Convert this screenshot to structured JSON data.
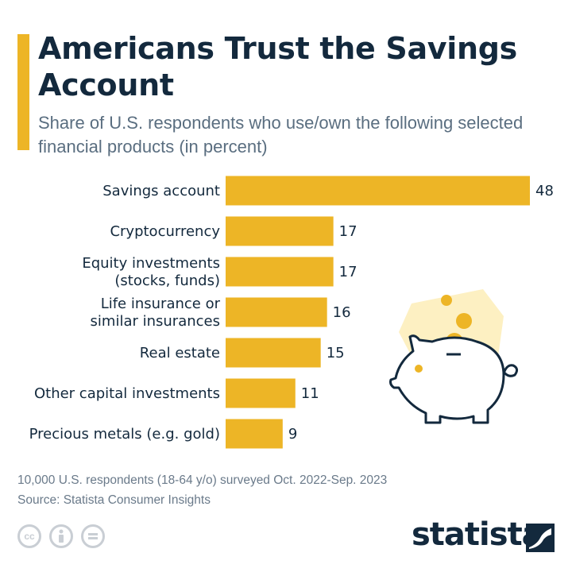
{
  "header": {
    "title": "Americans Trust the Savings Account",
    "subtitle": "Share of U.S. respondents who use/own the following selected financial products (in percent)"
  },
  "chart_data": {
    "type": "bar",
    "orientation": "horizontal",
    "categories": [
      [
        "Savings account"
      ],
      [
        "Cryptocurrency"
      ],
      [
        "Equity investments",
        "(stocks, funds)"
      ],
      [
        "Life insurance or",
        "similar insurances"
      ],
      [
        "Real estate"
      ],
      [
        "Other capital investments"
      ],
      [
        "Precious metals (e.g. gold)"
      ]
    ],
    "values": [
      48,
      17,
      17,
      16,
      15,
      11,
      9
    ],
    "bar_color": "#EDB526",
    "grid": false
  },
  "footer": {
    "note": "10,000 U.S. respondents (18-64 y/o) surveyed Oct. 2022-Sep. 2023",
    "source": "Source: Statista Consumer Insights",
    "brand": "statista",
    "license_icons": [
      "cc-icon",
      "attribution-icon",
      "no-derivatives-icon"
    ]
  },
  "colors": {
    "title": "#13293d",
    "subtitle": "#5a6e80",
    "accent": "#EDB526"
  }
}
